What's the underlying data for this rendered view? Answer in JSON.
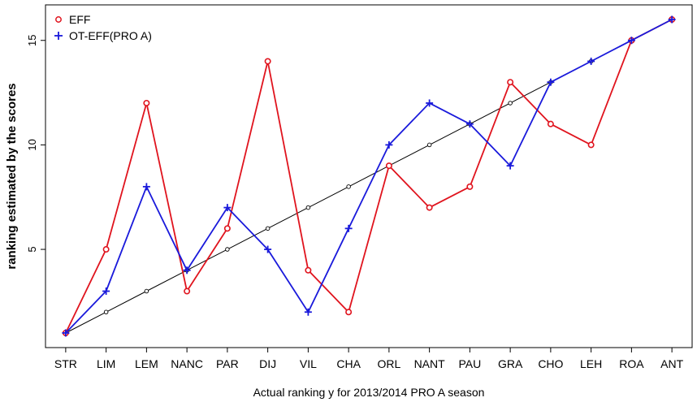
{
  "chart_data": {
    "type": "line",
    "xlabel": "Actual ranking y for 2013/2014 PRO A season",
    "ylabel": "ranking estimated by the scores",
    "categories": [
      "STR",
      "LIM",
      "LEM",
      "NANC",
      "PAR",
      "DIJ",
      "VIL",
      "CHA",
      "ORL",
      "NANT",
      "PAU",
      "GRA",
      "CHO",
      "LEH",
      "ROA",
      "ANT"
    ],
    "x": [
      1,
      2,
      3,
      4,
      5,
      6,
      7,
      8,
      9,
      10,
      11,
      12,
      13,
      14,
      15,
      16
    ],
    "xlim": [
      0.5,
      16.5
    ],
    "ylim": [
      0.3,
      16.7
    ],
    "yticks": [
      5,
      10,
      15
    ],
    "grid": false,
    "legend_position": "top-left",
    "reference": {
      "values": [
        1,
        2,
        3,
        4,
        5,
        6,
        7,
        8,
        9,
        10,
        11,
        12,
        13,
        14,
        15,
        16
      ],
      "color": "#000000"
    },
    "series": [
      {
        "name": "EFF",
        "values": [
          1,
          5,
          12,
          3,
          6,
          14,
          4,
          2,
          9,
          7,
          8,
          13,
          11,
          10,
          15,
          16
        ],
        "color": "#e0141e",
        "marker": "circle"
      },
      {
        "name": "OT-EFF(PRO A)",
        "values": [
          1,
          3,
          8,
          4,
          7,
          5,
          2,
          6,
          10,
          12,
          11,
          9,
          13,
          14,
          15,
          16
        ],
        "color": "#1a1adb",
        "marker": "plus"
      }
    ]
  }
}
